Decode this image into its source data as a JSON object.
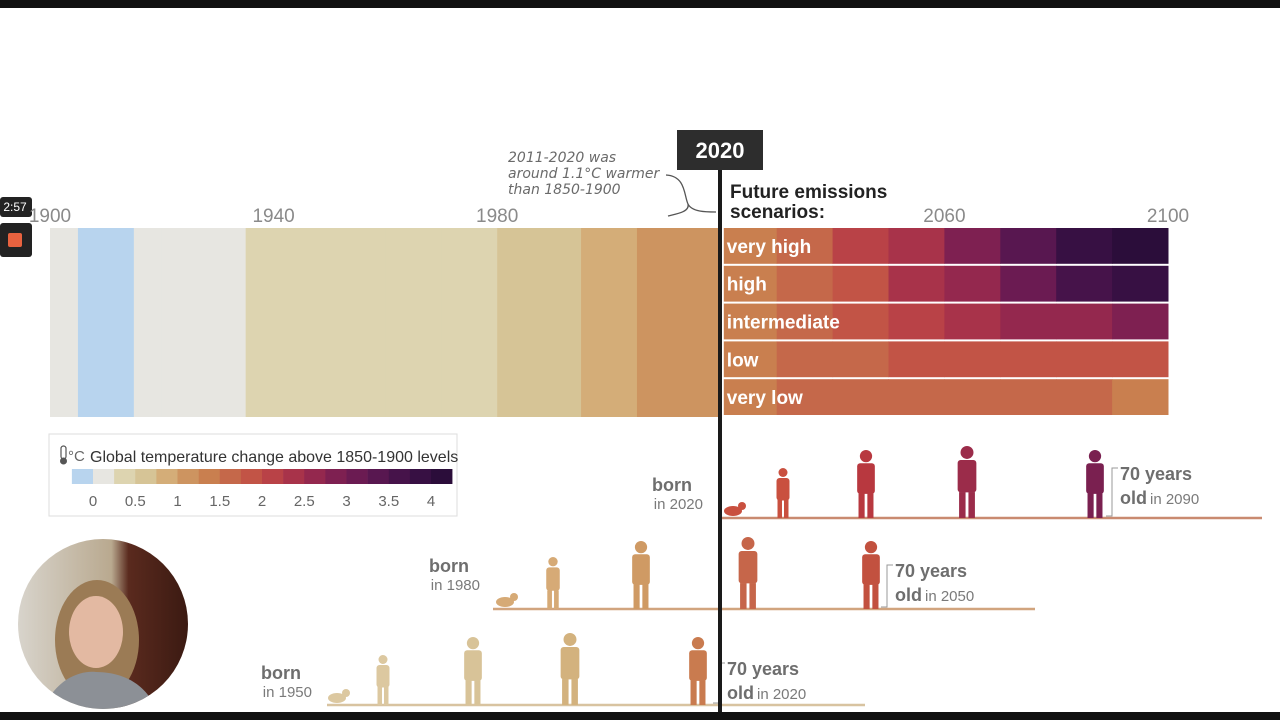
{
  "overlay": {
    "timer": "2:57"
  },
  "chart_data": {
    "type": "stripes",
    "marker_label": "2020",
    "annotation": [
      "2011-2020 was",
      "around 1.1°C warmer",
      "than 1850-1900"
    ],
    "scenario_title": [
      "Future emissions",
      "scenarios:"
    ],
    "xlim": [
      1900,
      2100
    ],
    "xticks": [
      1900,
      1940,
      1980,
      2060,
      2100
    ],
    "historical": {
      "x": [
        1900,
        1905,
        1910,
        1915,
        1920,
        1925,
        1930,
        1935,
        1940,
        1945,
        1950,
        1955,
        1960,
        1965,
        1970,
        1975,
        1980,
        1985,
        1990,
        1995,
        2000,
        2005,
        2010,
        2015
      ],
      "values": [
        0.05,
        -0.1,
        -0.05,
        0.1,
        0.15,
        0.1,
        0.2,
        0.3,
        0.35,
        0.3,
        0.3,
        0.3,
        0.35,
        0.3,
        0.35,
        0.4,
        0.5,
        0.6,
        0.7,
        0.8,
        0.9,
        1.0,
        1.1,
        1.2
      ]
    },
    "scenario_x": [
      2020,
      2030,
      2040,
      2050,
      2060,
      2070,
      2080,
      2090
    ],
    "series": [
      {
        "name": "very high",
        "values": [
          1.3,
          1.6,
          2.0,
          2.4,
          2.9,
          3.4,
          3.9,
          4.3
        ]
      },
      {
        "name": "high",
        "values": [
          1.3,
          1.6,
          1.9,
          2.3,
          2.7,
          3.1,
          3.5,
          3.8
        ]
      },
      {
        "name": "intermediate",
        "values": [
          1.3,
          1.6,
          1.8,
          2.1,
          2.3,
          2.5,
          2.7,
          2.8
        ]
      },
      {
        "name": "low",
        "values": [
          1.3,
          1.5,
          1.7,
          1.8,
          1.9,
          1.9,
          1.9,
          1.8
        ]
      },
      {
        "name": "very low",
        "values": [
          1.3,
          1.5,
          1.6,
          1.6,
          1.6,
          1.5,
          1.5,
          1.4
        ]
      }
    ],
    "legend": {
      "unit": "°C",
      "title": "Global temperature change above 1850-1900 levels",
      "bins": [
        -0.25,
        0,
        0.25,
        0.5,
        0.75,
        1,
        1.25,
        1.5,
        1.75,
        2,
        2.25,
        2.5,
        2.75,
        3,
        3.25,
        3.5,
        3.75,
        4,
        4.25
      ],
      "colors": [
        "#b8d4ee",
        "#e7e6e1",
        "#ddd4b0",
        "#d6c496",
        "#d4ad78",
        "#cd9460",
        "#c97f4f",
        "#c5684a",
        "#c25446",
        "#b94247",
        "#a8334a",
        "#94284e",
        "#7e2051",
        "#6b1b52",
        "#581750",
        "#46134a",
        "#371043",
        "#2b0d3a"
      ],
      "ticks": [
        0,
        0.5,
        1,
        1.5,
        2,
        2.5,
        3,
        3.5,
        4
      ]
    }
  },
  "generations": [
    {
      "born": "born",
      "born_year": "in 2020",
      "age": "70 years",
      "old": "old",
      "age_year": "in 2090"
    },
    {
      "born": "born",
      "born_year": "in 1980",
      "age": "70 years",
      "old": "old",
      "age_year": "in 2050"
    },
    {
      "born": "born",
      "born_year": "in 1950",
      "age": "70 years",
      "old": "old",
      "age_year": "in 2020"
    }
  ]
}
